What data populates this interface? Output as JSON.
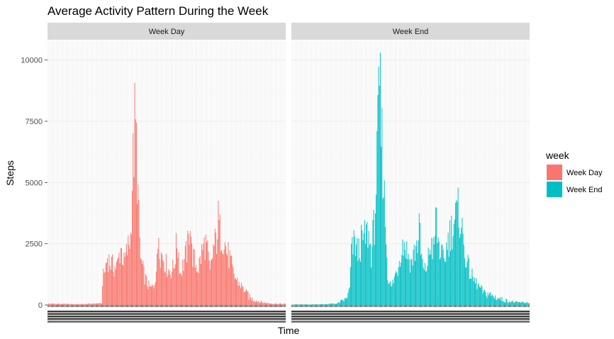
{
  "chart_data": {
    "type": "bar",
    "title": "Average Activity Pattern During the Week",
    "xlabel": "Time",
    "ylabel": "Steps",
    "ylim": [
      0,
      10800
    ],
    "yticks": [
      0,
      2500,
      5000,
      7500,
      10000
    ],
    "ytick_labels": [
      "0",
      "2500",
      "5000",
      "7500",
      "10000"
    ],
    "grid": true,
    "legend": {
      "title": "week",
      "position": "right"
    },
    "x_tick_labels_note": "288 five-minute intervals per panel; tick labels overlap and are illegible",
    "facets": [
      {
        "strip": "Week Day",
        "color": "#F8766D",
        "keypoints": [
          [
            0,
            50
          ],
          [
            20,
            40
          ],
          [
            40,
            30
          ],
          [
            58,
            60
          ],
          [
            65,
            60
          ],
          [
            66,
            1200
          ],
          [
            68,
            1500
          ],
          [
            72,
            2300
          ],
          [
            76,
            2000
          ],
          [
            80,
            1800
          ],
          [
            84,
            1900
          ],
          [
            88,
            2800
          ],
          [
            92,
            2000
          ],
          [
            96,
            2600
          ],
          [
            100,
            3300
          ],
          [
            102,
            6000
          ],
          [
            104,
            7500
          ],
          [
            105,
            8600
          ],
          [
            106,
            8200
          ],
          [
            107,
            7600
          ],
          [
            108,
            6500
          ],
          [
            110,
            4000
          ],
          [
            112,
            2200
          ],
          [
            116,
            1500
          ],
          [
            120,
            1000
          ],
          [
            124,
            800
          ],
          [
            128,
            900
          ],
          [
            132,
            2000
          ],
          [
            134,
            3700
          ],
          [
            136,
            2500
          ],
          [
            140,
            2300
          ],
          [
            144,
            1800
          ],
          [
            148,
            1600
          ],
          [
            152,
            1800
          ],
          [
            156,
            3000
          ],
          [
            158,
            2500
          ],
          [
            160,
            1500
          ],
          [
            164,
            2000
          ],
          [
            168,
            2600
          ],
          [
            170,
            3000
          ],
          [
            172,
            4400
          ],
          [
            174,
            2500
          ],
          [
            178,
            2000
          ],
          [
            182,
            1800
          ],
          [
            186,
            2500
          ],
          [
            190,
            3000
          ],
          [
            192,
            2800
          ],
          [
            196,
            1500
          ],
          [
            200,
            2700
          ],
          [
            204,
            3200
          ],
          [
            206,
            4050
          ],
          [
            208,
            3500
          ],
          [
            212,
            3300
          ],
          [
            216,
            2600
          ],
          [
            220,
            2200
          ],
          [
            224,
            1500
          ],
          [
            228,
            1200
          ],
          [
            232,
            1000
          ],
          [
            236,
            800
          ],
          [
            240,
            600
          ],
          [
            244,
            300
          ],
          [
            250,
            200
          ],
          [
            260,
            100
          ],
          [
            270,
            60
          ],
          [
            287,
            40
          ]
        ]
      },
      {
        "strip": "Week End",
        "color": "#00BFC4",
        "keypoints": [
          [
            0,
            20
          ],
          [
            20,
            20
          ],
          [
            40,
            30
          ],
          [
            55,
            60
          ],
          [
            60,
            150
          ],
          [
            66,
            250
          ],
          [
            70,
            800
          ],
          [
            72,
            2500
          ],
          [
            76,
            3000
          ],
          [
            80,
            2500
          ],
          [
            84,
            3000
          ],
          [
            88,
            3200
          ],
          [
            92,
            3500
          ],
          [
            96,
            2500
          ],
          [
            100,
            4000
          ],
          [
            102,
            5800
          ],
          [
            104,
            7800
          ],
          [
            105,
            9200
          ],
          [
            106,
            10200
          ],
          [
            107,
            9600
          ],
          [
            108,
            8400
          ],
          [
            110,
            7000
          ],
          [
            112,
            5000
          ],
          [
            116,
            1500
          ],
          [
            120,
            800
          ],
          [
            124,
            1300
          ],
          [
            128,
            1800
          ],
          [
            132,
            2700
          ],
          [
            136,
            3000
          ],
          [
            140,
            2500
          ],
          [
            144,
            2000
          ],
          [
            148,
            2500
          ],
          [
            152,
            3000
          ],
          [
            154,
            3800
          ],
          [
            156,
            2500
          ],
          [
            160,
            1500
          ],
          [
            164,
            2000
          ],
          [
            168,
            3000
          ],
          [
            172,
            2500
          ],
          [
            174,
            4500
          ],
          [
            176,
            3300
          ],
          [
            180,
            2500
          ],
          [
            184,
            2000
          ],
          [
            188,
            3000
          ],
          [
            192,
            3500
          ],
          [
            196,
            4000
          ],
          [
            200,
            4300
          ],
          [
            202,
            4500
          ],
          [
            204,
            4200
          ],
          [
            208,
            2800
          ],
          [
            212,
            2000
          ],
          [
            216,
            1500
          ],
          [
            220,
            1200
          ],
          [
            224,
            1000
          ],
          [
            228,
            800
          ],
          [
            232,
            600
          ],
          [
            236,
            500
          ],
          [
            240,
            400
          ],
          [
            248,
            300
          ],
          [
            256,
            200
          ],
          [
            264,
            150
          ],
          [
            272,
            100
          ],
          [
            280,
            100
          ],
          [
            287,
            100
          ]
        ]
      }
    ]
  }
}
